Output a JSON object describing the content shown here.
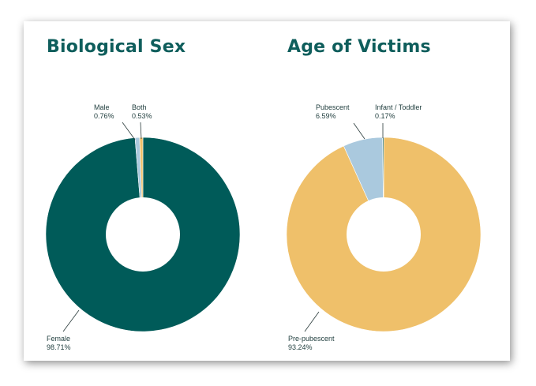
{
  "colors": {
    "female": "#005b59",
    "male": "#aac9de",
    "both": "#efc06a",
    "pre_pubescent": "#efc06a",
    "pubescent": "#aac9de",
    "infant_toddler": "#005b59",
    "title": "#0f5e5c"
  },
  "chart_data": [
    {
      "type": "pie",
      "title": "Biological Sex",
      "donut": true,
      "slices": [
        {
          "label": "Female",
          "value_text": "98.71%",
          "value": 98.71,
          "color": "#005b59"
        },
        {
          "label": "Male",
          "value_text": "0.76%",
          "value": 0.76,
          "color": "#aac9de"
        },
        {
          "label": "Both",
          "value_text": "0.53%",
          "value": 0.53,
          "color": "#efc06a"
        }
      ]
    },
    {
      "type": "pie",
      "title": "Age of Victims",
      "donut": true,
      "slices": [
        {
          "label": "Pre-pubescent",
          "value_text": "93.24%",
          "value": 93.24,
          "color": "#efc06a"
        },
        {
          "label": "Pubescent",
          "value_text": "6.59%",
          "value": 6.59,
          "color": "#aac9de"
        },
        {
          "label": "Infant / Toddler",
          "value_text": "0.17%",
          "value": 0.17,
          "color": "#005b59"
        }
      ]
    }
  ]
}
